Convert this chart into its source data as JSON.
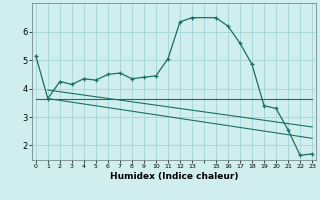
{
  "xlabel": "Humidex (Indice chaleur)",
  "background_color": "#d0eeee",
  "grid_color": "#a8d8d8",
  "line_color": "#1a6e64",
  "x_values": [
    0,
    1,
    2,
    3,
    4,
    5,
    6,
    7,
    8,
    9,
    10,
    11,
    12,
    13,
    15,
    16,
    17,
    18,
    19,
    20,
    21,
    22,
    23
  ],
  "series1": [
    5.15,
    3.65,
    4.25,
    4.15,
    4.35,
    4.3,
    4.5,
    4.55,
    4.35,
    4.4,
    4.45,
    5.05,
    6.35,
    6.5,
    6.5,
    6.2,
    5.6,
    4.85,
    3.4,
    3.3,
    2.55,
    1.65,
    1.7
  ],
  "series2_x": [
    0,
    23
  ],
  "series2_y": [
    3.65,
    3.65
  ],
  "series3_x": [
    1,
    23
  ],
  "series3_y": [
    3.95,
    2.65
  ],
  "series4_x": [
    1,
    23
  ],
  "series4_y": [
    3.65,
    2.25
  ],
  "ylim": [
    1.5,
    7.0
  ],
  "xlim": [
    -0.3,
    23.3
  ],
  "yticks": [
    2,
    3,
    4,
    5,
    6
  ],
  "xtick_positions": [
    0,
    1,
    2,
    3,
    4,
    5,
    6,
    7,
    8,
    9,
    10,
    11,
    12,
    13,
    14,
    15,
    16,
    17,
    18,
    19,
    20,
    21,
    22,
    23
  ],
  "xtick_labels": [
    "0",
    "1",
    "2",
    "3",
    "4",
    "5",
    "6",
    "7",
    "8",
    "9",
    "10",
    "11",
    "12",
    "13",
    "",
    "15",
    "16",
    "17",
    "18",
    "19",
    "20",
    "21",
    "22",
    "23"
  ]
}
